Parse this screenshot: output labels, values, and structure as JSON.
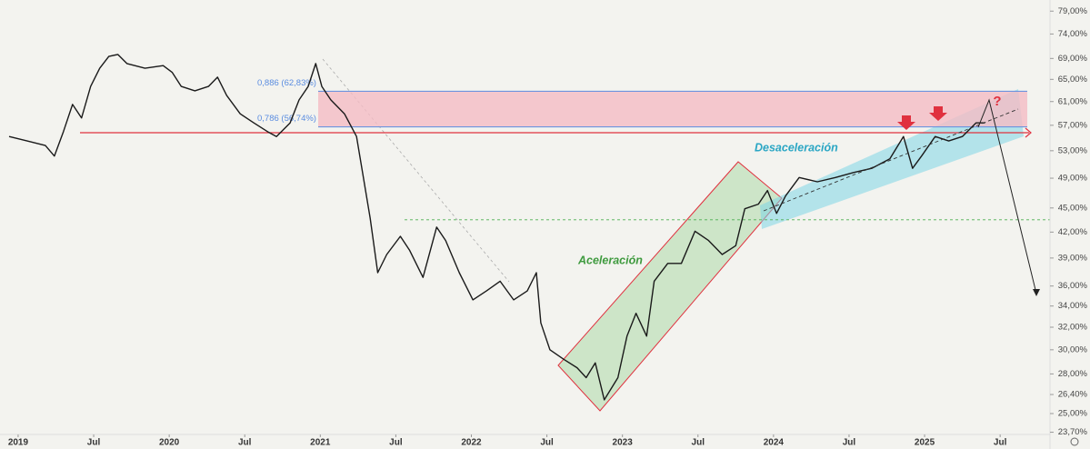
{
  "chart_data": {
    "type": "line",
    "color": "#1a1a1a",
    "log_scale": true,
    "x": [
      2018.94,
      2019.06,
      2019.18,
      2019.24,
      2019.3,
      2019.36,
      2019.42,
      2019.48,
      2019.54,
      2019.6,
      2019.66,
      2019.72,
      2019.84,
      2019.96,
      2020.02,
      2020.08,
      2020.17,
      2020.26,
      2020.32,
      2020.38,
      2020.47,
      2020.56,
      2020.65,
      2020.71,
      2020.8,
      2020.86,
      2020.92,
      2020.97,
      2021.01,
      2021.07,
      2021.16,
      2021.24,
      2021.28,
      2021.33,
      2021.38,
      2021.44,
      2021.53,
      2021.59,
      2021.68,
      2021.77,
      2021.83,
      2021.92,
      2022.01,
      2022.1,
      2022.19,
      2022.28,
      2022.37,
      2022.43,
      2022.46,
      2022.52,
      2022.61,
      2022.7,
      2022.76,
      2022.82,
      2022.88,
      2022.97,
      2023.03,
      2023.09,
      2023.16,
      2023.21,
      2023.3,
      2023.39,
      2023.48,
      2023.57,
      2023.66,
      2023.75,
      2023.81,
      2023.9,
      2023.96,
      2024.02,
      2024.08,
      2024.17,
      2024.29,
      2024.41,
      2024.53,
      2024.65,
      2024.77,
      2024.86,
      2024.92,
      2024.98,
      2025.07,
      2025.16,
      2025.25,
      2025.34,
      2025.4
    ],
    "values": [
      55.2,
      54.5,
      53.8,
      52.2,
      56.0,
      60.5,
      58.2,
      63.7,
      67.1,
      69.4,
      69.8,
      68.0,
      67.1,
      67.6,
      66.3,
      63.7,
      62.9,
      63.7,
      65.4,
      62.1,
      58.9,
      57.4,
      56.0,
      55.2,
      57.4,
      61.3,
      63.7,
      68.0,
      63.7,
      61.3,
      58.9,
      55.2,
      49.8,
      43.7,
      37.4,
      39.4,
      41.5,
      39.9,
      36.9,
      42.6,
      41.0,
      37.4,
      34.6,
      35.5,
      36.5,
      34.6,
      35.5,
      37.4,
      32.4,
      30.0,
      29.2,
      28.5,
      27.7,
      28.9,
      26.0,
      27.7,
      31.2,
      33.3,
      31.2,
      36.5,
      38.4,
      38.4,
      42.1,
      41.0,
      39.4,
      40.4,
      44.9,
      45.5,
      47.3,
      44.3,
      46.6,
      49.1,
      48.5,
      49.1,
      49.8,
      50.4,
      51.8,
      55.2,
      50.4,
      52.2,
      55.2,
      54.5,
      55.2,
      57.4,
      57.4
    ],
    "xlim": [
      2018.88,
      2025.8
    ],
    "xticks": [
      {
        "value": 2019,
        "label": "2019"
      },
      {
        "value": 2019.5,
        "label": "Jul"
      },
      {
        "value": 2020,
        "label": "2020"
      },
      {
        "value": 2020.5,
        "label": "Jul"
      },
      {
        "value": 2021,
        "label": "2021"
      },
      {
        "value": 2021.5,
        "label": "Jul"
      },
      {
        "value": 2022,
        "label": "2022"
      },
      {
        "value": 2022.5,
        "label": "Jul"
      },
      {
        "value": 2023,
        "label": "2023"
      },
      {
        "value": 2023.5,
        "label": "Jul"
      },
      {
        "value": 2024,
        "label": "2024"
      },
      {
        "value": 2024.5,
        "label": "Jul"
      },
      {
        "value": 2025,
        "label": "2025"
      },
      {
        "value": 2025.5,
        "label": "Jul"
      }
    ],
    "ylim": [
      23.55,
      80.5
    ],
    "yticks": [
      {
        "value": 79,
        "label": "79,00%"
      },
      {
        "value": 74,
        "label": "74,00%"
      },
      {
        "value": 69,
        "label": "69,00%"
      },
      {
        "value": 65,
        "label": "65,00%"
      },
      {
        "value": 61,
        "label": "61,00%"
      },
      {
        "value": 57,
        "label": "57,00%"
      },
      {
        "value": 53,
        "label": "53,00%"
      },
      {
        "value": 49,
        "label": "49,00%"
      },
      {
        "value": 45,
        "label": "45,00%"
      },
      {
        "value": 42,
        "label": "42,00%"
      },
      {
        "value": 39,
        "label": "39,00%"
      },
      {
        "value": 36,
        "label": "36,00%"
      },
      {
        "value": 34,
        "label": "34,00%"
      },
      {
        "value": 32,
        "label": "32,00%"
      },
      {
        "value": 30,
        "label": "30,00%"
      },
      {
        "value": 28,
        "label": "28,00%"
      },
      {
        "value": 26.4,
        "label": "26,40%"
      },
      {
        "value": 25,
        "label": "25,00%"
      },
      {
        "value": 23.7,
        "label": "23,70%"
      }
    ],
    "fib_levels": [
      {
        "label": "0,886 (62,83%)",
        "value": 62.83,
        "color": "#5b8de0"
      },
      {
        "label": "0,786 (56,74%)",
        "value": 56.74,
        "color": "#5b8de0"
      }
    ],
    "zone_color": "#f4bcc4",
    "support": {
      "value": 55.8,
      "color": "#e0313f"
    },
    "target": {
      "value": 43.5,
      "color": "#4caf50"
    },
    "annotations": [
      {
        "text": "Aceleración",
        "color": "#3e9a3e"
      },
      {
        "text": "Desaceleración",
        "color": "#2aa6c4"
      }
    ]
  }
}
